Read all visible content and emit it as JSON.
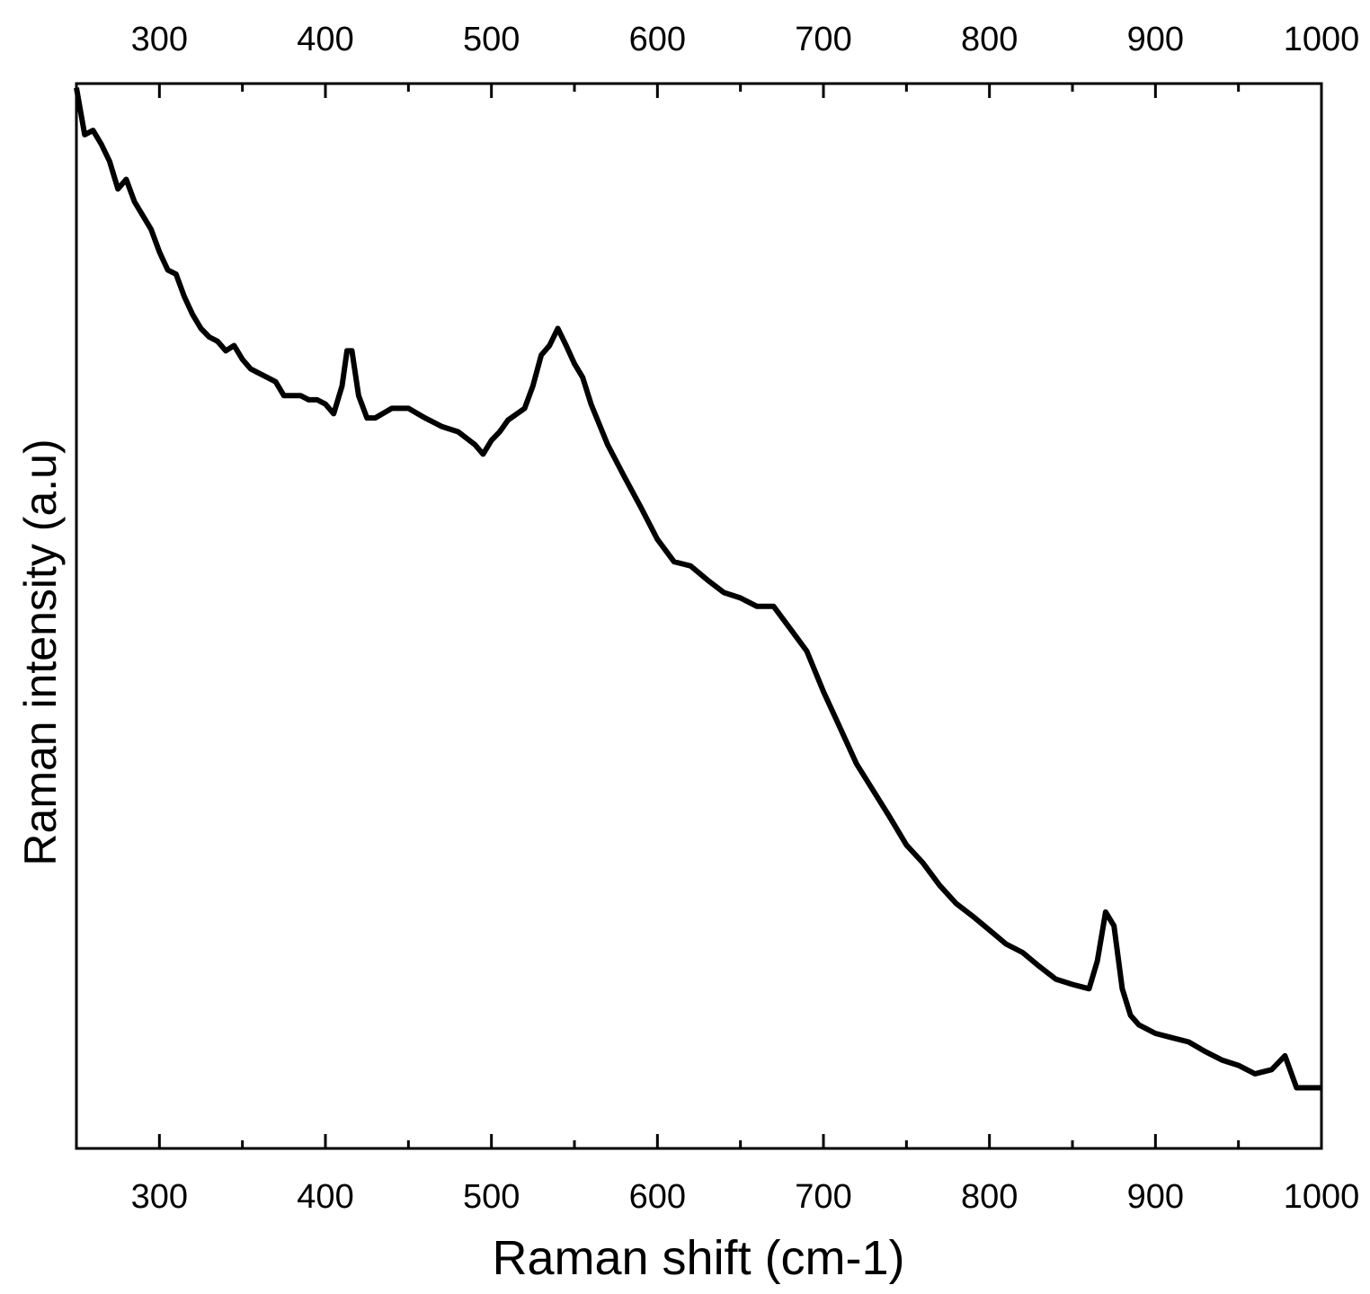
{
  "chart_data": {
    "type": "line",
    "x_label": "Raman shift (cm-1)",
    "y_label": "Raman intensity (a.u)",
    "xlim": [
      250,
      1000
    ],
    "xticks": [
      300,
      400,
      500,
      600,
      700,
      800,
      900,
      1000
    ],
    "xminorticks": [
      250,
      350,
      450,
      550,
      650,
      750,
      850,
      950
    ],
    "ylim": [
      0,
      100
    ],
    "x": [
      250,
      255,
      260,
      265,
      270,
      275,
      280,
      285,
      290,
      295,
      300,
      305,
      310,
      315,
      320,
      325,
      330,
      335,
      340,
      345,
      350,
      355,
      360,
      365,
      370,
      375,
      380,
      385,
      390,
      395,
      400,
      405,
      410,
      413,
      416,
      420,
      425,
      430,
      440,
      450,
      460,
      470,
      480,
      490,
      495,
      500,
      505,
      510,
      520,
      525,
      530,
      535,
      540,
      545,
      550,
      555,
      560,
      570,
      580,
      590,
      600,
      610,
      620,
      630,
      640,
      650,
      660,
      670,
      680,
      690,
      700,
      710,
      720,
      730,
      740,
      750,
      760,
      770,
      780,
      790,
      800,
      810,
      820,
      830,
      840,
      850,
      860,
      865,
      870,
      875,
      880,
      885,
      890,
      900,
      910,
      920,
      930,
      940,
      950,
      960,
      970,
      978,
      985,
      990,
      1000
    ],
    "series": [
      {
        "color": "#000000",
        "values": [
          99.6,
          95.2,
          95.6,
          94.3,
          92.7,
          90.1,
          91.0,
          88.9,
          87.6,
          86.3,
          84.2,
          82.5,
          82.1,
          80.0,
          78.3,
          77.0,
          76.2,
          75.8,
          74.9,
          75.4,
          74.1,
          73.2,
          72.8,
          72.4,
          72.0,
          70.7,
          70.7,
          70.7,
          70.3,
          70.3,
          69.9,
          69.0,
          71.6,
          74.9,
          74.9,
          70.7,
          68.6,
          68.6,
          69.5,
          69.5,
          68.6,
          67.8,
          67.3,
          66.1,
          65.2,
          66.5,
          67.3,
          68.4,
          69.5,
          71.6,
          74.5,
          75.4,
          77.0,
          75.4,
          73.7,
          72.4,
          69.9,
          66.1,
          63.1,
          60.2,
          57.2,
          55.1,
          54.7,
          53.4,
          52.2,
          51.7,
          50.9,
          50.9,
          48.8,
          46.7,
          42.9,
          39.5,
          36.1,
          33.6,
          31.1,
          28.5,
          26.8,
          24.7,
          23.0,
          21.8,
          20.5,
          19.2,
          18.4,
          17.1,
          15.9,
          15.4,
          15.0,
          17.6,
          22.2,
          20.9,
          15.0,
          12.5,
          11.6,
          10.8,
          10.4,
          10.0,
          9.1,
          8.3,
          7.8,
          7.0,
          7.4,
          8.7,
          5.7,
          5.7,
          5.7
        ]
      }
    ]
  }
}
